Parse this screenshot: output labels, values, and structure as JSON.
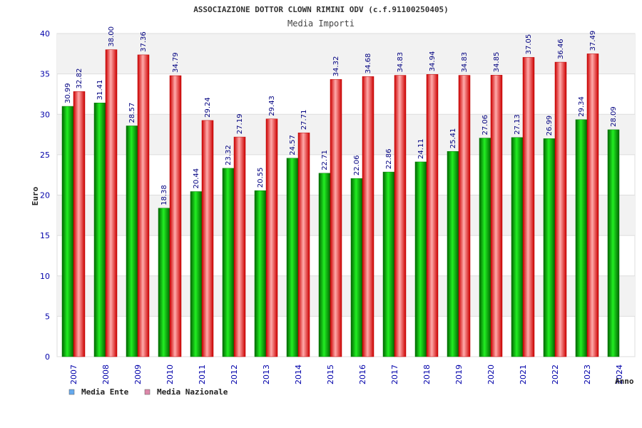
{
  "chart_data": {
    "type": "bar",
    "title": "ASSOCIAZIONE DOTTOR CLOWN RIMINI ODV (c.f.91100250405)",
    "subtitle": "Media Importi",
    "xlabel": "Anno",
    "ylabel": "Euro",
    "ylim": [
      0,
      40
    ],
    "yticks": [
      0,
      5,
      10,
      15,
      20,
      25,
      30,
      35,
      40
    ],
    "grid": true,
    "legend_position": "bottom-left",
    "categories": [
      "2007",
      "2008",
      "2009",
      "2010",
      "2011",
      "2012",
      "2013",
      "2014",
      "2015",
      "2016",
      "2017",
      "2018",
      "2019",
      "2020",
      "2021",
      "2022",
      "2023",
      "2024"
    ],
    "series": [
      {
        "name": "Media Ente",
        "color": "#00aa00",
        "legend_color": "#66aaee",
        "values": [
          30.99,
          31.41,
          28.57,
          18.38,
          20.44,
          23.32,
          20.55,
          24.57,
          22.71,
          22.06,
          22.86,
          24.11,
          25.41,
          27.06,
          27.13,
          26.99,
          29.34,
          28.09
        ],
        "labels": [
          "30.99",
          "31.41",
          "28.57",
          "18.38",
          "20.44",
          "23.32",
          "20.55",
          "24.57",
          "22.71",
          "22.06",
          "22.86",
          "24.11",
          "25.41",
          "27.06",
          "27.13",
          "26.99",
          "29.34",
          "28.09"
        ]
      },
      {
        "name": "Media Nazionale",
        "color": "#ee1111",
        "legend_color": "#dd88aa",
        "values": [
          32.82,
          38.0,
          37.36,
          34.79,
          29.24,
          27.19,
          29.43,
          27.71,
          34.32,
          34.68,
          34.83,
          34.94,
          34.83,
          34.85,
          37.05,
          36.46,
          37.49,
          null
        ],
        "labels": [
          "32.82",
          "38.00",
          "37.36",
          "34.79",
          "29.24",
          "27.19",
          "29.43",
          "27.71",
          "34.32",
          "34.68",
          "34.83",
          "34.94",
          "34.83",
          "34.85",
          "37.05",
          "36.46",
          "37.49",
          ""
        ]
      }
    ]
  }
}
